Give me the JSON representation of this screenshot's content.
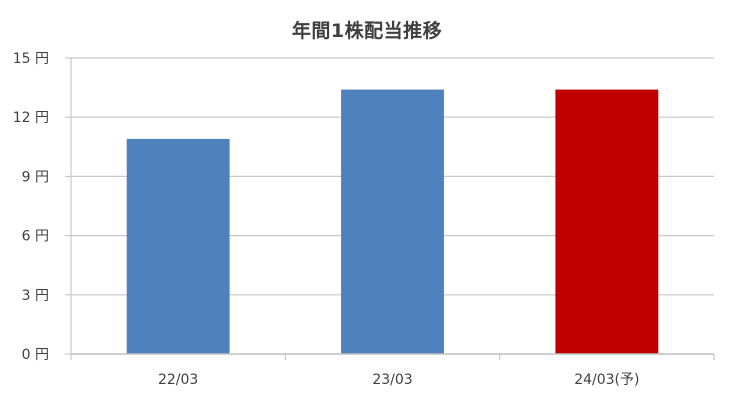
{
  "chart_data": {
    "type": "bar",
    "title": "年間1株配当推移",
    "xlabel": "",
    "ylabel": "",
    "categories": [
      "22/03",
      "23/03",
      "24/03(予)"
    ],
    "values": [
      10.9,
      13.4,
      13.4
    ],
    "bar_colors": [
      "#4f81bd",
      "#4f81bd",
      "#c00000"
    ],
    "ylim": [
      0,
      15
    ],
    "yticks": [
      0,
      3,
      6,
      9,
      12,
      15
    ],
    "ytick_labels": [
      "0 円",
      "3 円",
      "6 円",
      "9 円",
      "12 円",
      "15 円"
    ],
    "grid": true,
    "legend": "none",
    "colors": {
      "grid": "#c8c8c8",
      "axis": "#bfbfbf",
      "text": "#404040"
    }
  }
}
